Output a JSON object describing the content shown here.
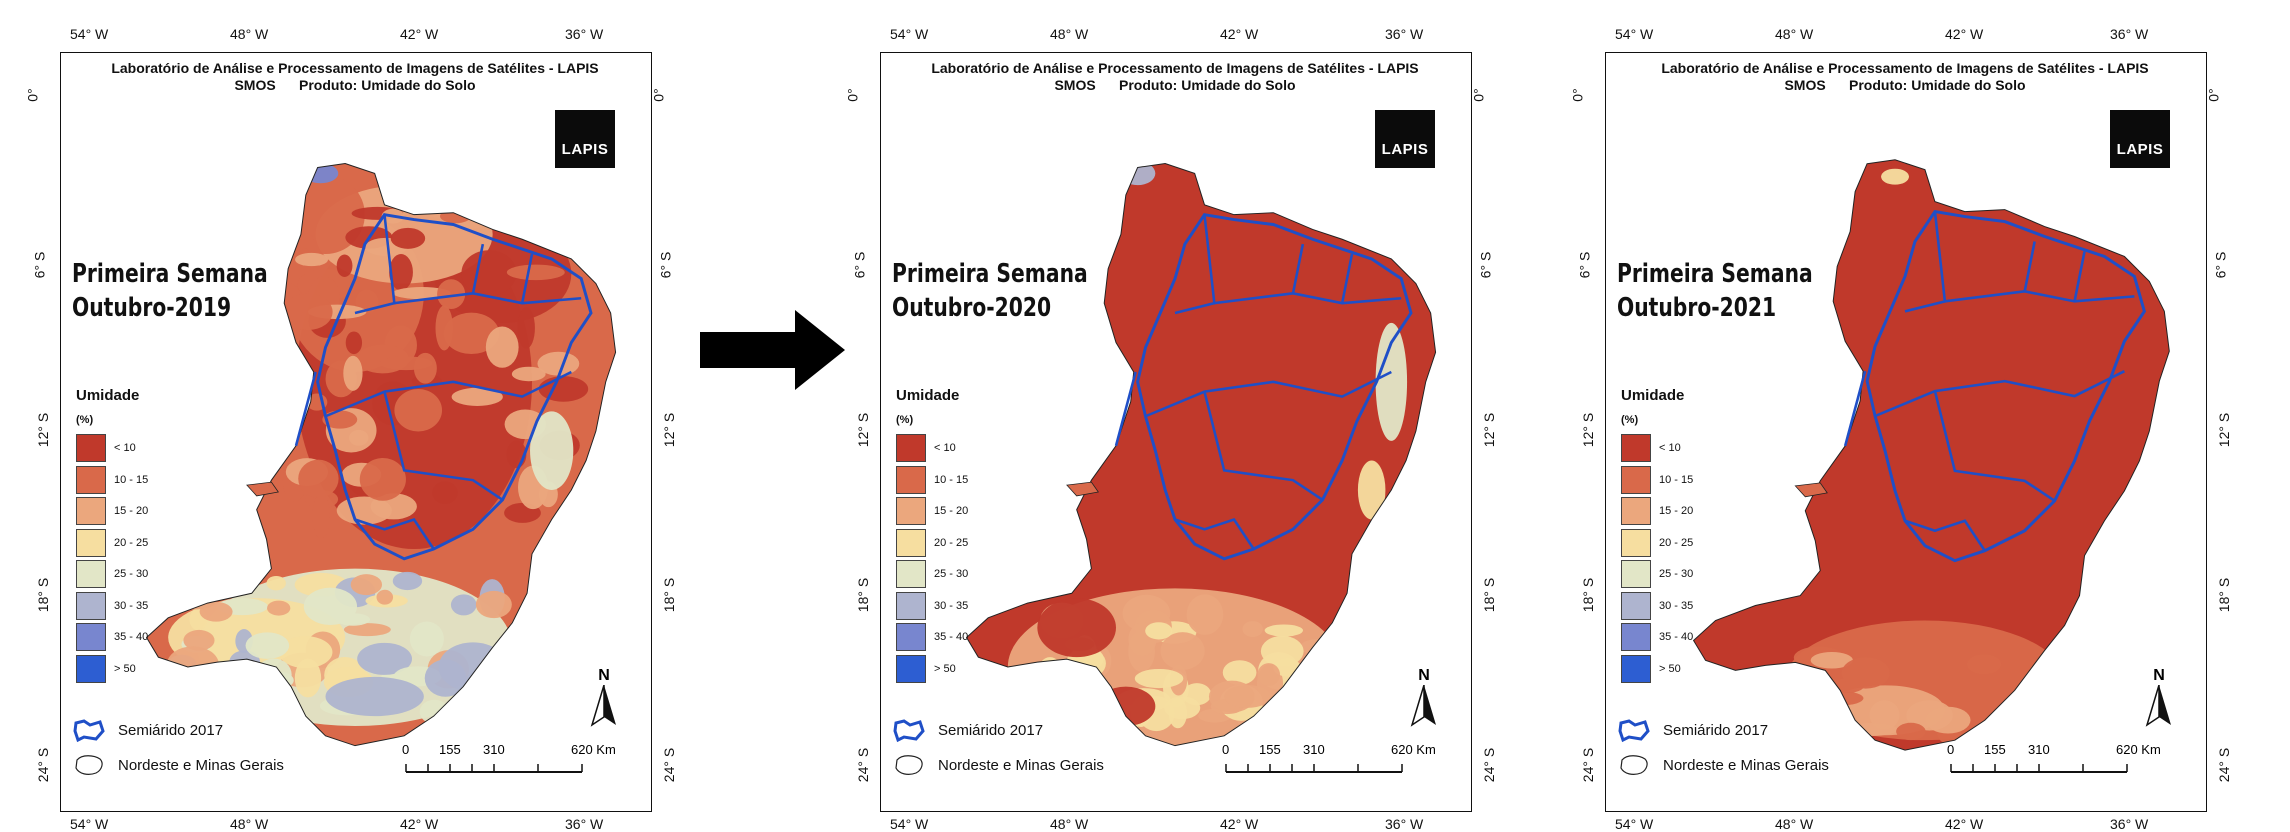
{
  "header": {
    "line1": "Laboratório de Análise e Processamento de Imagens de Satélites - LAPIS",
    "line2": "SMOS      Produto: Umidade do Solo"
  },
  "logo_text": "LAPIS",
  "axes": {
    "top_labels": [
      "54° W",
      "48° W",
      "42° W",
      "36° W"
    ],
    "side_labels": [
      "0°",
      "6° S",
      "12° S",
      "18° S",
      "24° S"
    ]
  },
  "legend": {
    "title": "Umidade",
    "unit": "(%)",
    "classes": [
      {
        "label": "< 10",
        "color": "#c0392b"
      },
      {
        "label": "10 - 15",
        "color": "#d9694a"
      },
      {
        "label": "15 - 20",
        "color": "#eba77d"
      },
      {
        "label": "20 - 25",
        "color": "#f6dea0"
      },
      {
        "label": "25 - 30",
        "color": "#e2e6c7"
      },
      {
        "label": "30 - 35",
        "color": "#aeb4cf"
      },
      {
        "label": "35 - 40",
        "color": "#7886cf"
      },
      {
        "label": "> 50",
        "color": "#2d5ed2"
      }
    ]
  },
  "reference": {
    "semiarido": "Semiárido 2017",
    "nordeste": "Nordeste e Minas Gerais"
  },
  "scale": {
    "ticks": [
      "0",
      "155",
      "310",
      "620 Km"
    ]
  },
  "north_label": "N",
  "panels": [
    {
      "line1": "Primeira Semana",
      "line2": "Outubro-2019",
      "dominant": "mixed"
    },
    {
      "line1": "Primeira Semana",
      "line2": "Outubro-2020",
      "dominant": "dry"
    },
    {
      "line1": "Primeira Semana",
      "line2": "Outubro-2021",
      "dominant": "very-dry"
    }
  ],
  "colors": {
    "boundary": "#1f4fc7",
    "outline": "#222222"
  }
}
